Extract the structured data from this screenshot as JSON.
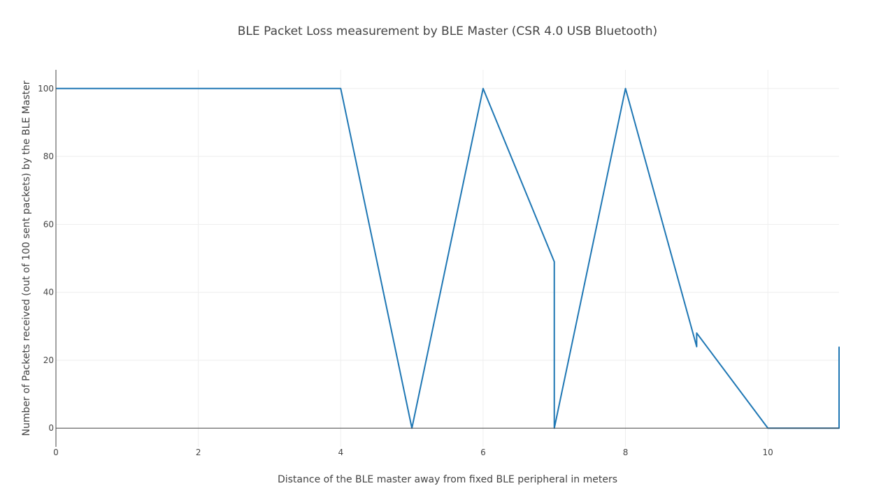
{
  "chart_data": {
    "type": "line",
    "title": "BLE Packet Loss measurement by BLE Master (CSR 4.0 USB Bluetooth)",
    "xlabel": "Distance of the BLE master away from fixed BLE peripheral in meters",
    "ylabel": "Number of Packets received (out of 100 sent packets) by the BLE Master",
    "xlim": [
      0,
      11
    ],
    "ylim": [
      -5.5,
      105.5
    ],
    "x_ticks": [
      0,
      2,
      4,
      6,
      8,
      10
    ],
    "y_ticks": [
      0,
      20,
      40,
      60,
      80,
      100
    ],
    "grid": true,
    "series": [
      {
        "color": "#1f77b4",
        "x": [
          0,
          4,
          5,
          6,
          7,
          7,
          8,
          9,
          9,
          10,
          11,
          11
        ],
        "y": [
          100,
          100,
          0,
          100,
          49,
          0,
          100,
          24,
          28,
          0,
          0,
          24
        ]
      }
    ]
  }
}
